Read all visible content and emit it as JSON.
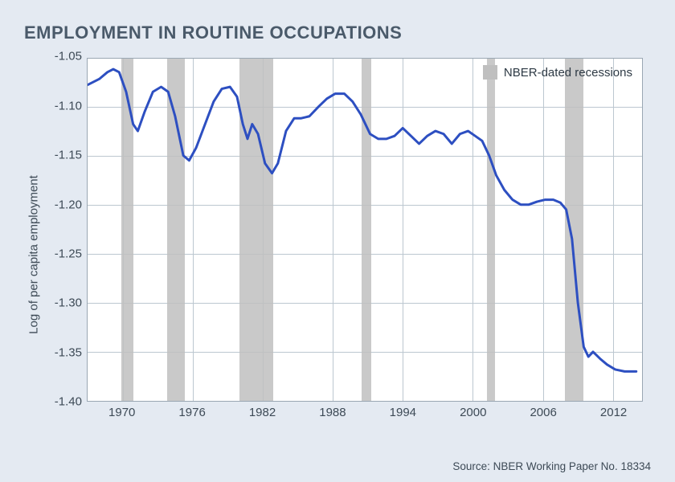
{
  "title": "EMPLOYMENT IN ROUTINE OCCUPATIONS",
  "ylabel": "Log of per capita employment",
  "source": "Source: NBER Working Paper No. 18334",
  "legend_label": "NBER-dated recessions",
  "chart": {
    "type": "line",
    "x_domain": [
      1967,
      2014.5
    ],
    "y_domain": [
      -1.4,
      -1.05125
    ],
    "xticks": [
      1970,
      1976,
      1982,
      1988,
      1994,
      2000,
      2006,
      2012
    ],
    "yticks": [
      -1.05,
      -1.1,
      -1.15,
      -1.2,
      -1.25,
      -1.3,
      -1.35,
      -1.4
    ],
    "background_color": "#ffffff",
    "page_background": "#e4eaf2",
    "grid_color": "#bcc7d0",
    "frame_color": "#9aa7b3",
    "line_color": "#2d4fc1",
    "line_width": 3.0,
    "recession_color": "#bfbfbf",
    "recessions": [
      [
        1969.9,
        1970.9
      ],
      [
        1973.8,
        1975.3
      ],
      [
        1980.0,
        1982.9
      ],
      [
        1990.5,
        1991.3
      ],
      [
        2001.2,
        2001.9
      ],
      [
        2007.9,
        2009.5
      ]
    ],
    "series": [
      {
        "x": 1967.0,
        "y": -1.078
      },
      {
        "x": 1968.0,
        "y": -1.072
      },
      {
        "x": 1968.7,
        "y": -1.065
      },
      {
        "x": 1969.2,
        "y": -1.062
      },
      {
        "x": 1969.7,
        "y": -1.065
      },
      {
        "x": 1970.3,
        "y": -1.085
      },
      {
        "x": 1970.9,
        "y": -1.118
      },
      {
        "x": 1971.3,
        "y": -1.125
      },
      {
        "x": 1971.9,
        "y": -1.105
      },
      {
        "x": 1972.6,
        "y": -1.085
      },
      {
        "x": 1973.3,
        "y": -1.08
      },
      {
        "x": 1973.9,
        "y": -1.085
      },
      {
        "x": 1974.5,
        "y": -1.11
      },
      {
        "x": 1975.2,
        "y": -1.15
      },
      {
        "x": 1975.7,
        "y": -1.155
      },
      {
        "x": 1976.3,
        "y": -1.142
      },
      {
        "x": 1977.0,
        "y": -1.12
      },
      {
        "x": 1977.8,
        "y": -1.095
      },
      {
        "x": 1978.5,
        "y": -1.082
      },
      {
        "x": 1979.2,
        "y": -1.08
      },
      {
        "x": 1979.8,
        "y": -1.09
      },
      {
        "x": 1980.3,
        "y": -1.118
      },
      {
        "x": 1980.7,
        "y": -1.133
      },
      {
        "x": 1981.1,
        "y": -1.118
      },
      {
        "x": 1981.6,
        "y": -1.128
      },
      {
        "x": 1982.2,
        "y": -1.158
      },
      {
        "x": 1982.8,
        "y": -1.168
      },
      {
        "x": 1983.3,
        "y": -1.158
      },
      {
        "x": 1984.0,
        "y": -1.125
      },
      {
        "x": 1984.7,
        "y": -1.112
      },
      {
        "x": 1985.3,
        "y": -1.112
      },
      {
        "x": 1986.0,
        "y": -1.11
      },
      {
        "x": 1986.8,
        "y": -1.1
      },
      {
        "x": 1987.5,
        "y": -1.092
      },
      {
        "x": 1988.2,
        "y": -1.087
      },
      {
        "x": 1989.0,
        "y": -1.087
      },
      {
        "x": 1989.7,
        "y": -1.095
      },
      {
        "x": 1990.4,
        "y": -1.108
      },
      {
        "x": 1991.2,
        "y": -1.128
      },
      {
        "x": 1991.9,
        "y": -1.133
      },
      {
        "x": 1992.6,
        "y": -1.133
      },
      {
        "x": 1993.3,
        "y": -1.13
      },
      {
        "x": 1994.0,
        "y": -1.122
      },
      {
        "x": 1994.7,
        "y": -1.13
      },
      {
        "x": 1995.4,
        "y": -1.138
      },
      {
        "x": 1996.1,
        "y": -1.13
      },
      {
        "x": 1996.8,
        "y": -1.125
      },
      {
        "x": 1997.5,
        "y": -1.128
      },
      {
        "x": 1998.2,
        "y": -1.138
      },
      {
        "x": 1998.9,
        "y": -1.128
      },
      {
        "x": 1999.6,
        "y": -1.125
      },
      {
        "x": 2000.2,
        "y": -1.13
      },
      {
        "x": 2000.8,
        "y": -1.135
      },
      {
        "x": 2001.4,
        "y": -1.15
      },
      {
        "x": 2002.0,
        "y": -1.17
      },
      {
        "x": 2002.7,
        "y": -1.185
      },
      {
        "x": 2003.4,
        "y": -1.195
      },
      {
        "x": 2004.1,
        "y": -1.2
      },
      {
        "x": 2004.8,
        "y": -1.2
      },
      {
        "x": 2005.5,
        "y": -1.197
      },
      {
        "x": 2006.2,
        "y": -1.195
      },
      {
        "x": 2006.9,
        "y": -1.195
      },
      {
        "x": 2007.5,
        "y": -1.198
      },
      {
        "x": 2008.0,
        "y": -1.205
      },
      {
        "x": 2008.5,
        "y": -1.235
      },
      {
        "x": 2009.0,
        "y": -1.3
      },
      {
        "x": 2009.5,
        "y": -1.345
      },
      {
        "x": 2009.9,
        "y": -1.355
      },
      {
        "x": 2010.3,
        "y": -1.35
      },
      {
        "x": 2010.9,
        "y": -1.357
      },
      {
        "x": 2011.5,
        "y": -1.363
      },
      {
        "x": 2012.2,
        "y": -1.368
      },
      {
        "x": 2013.0,
        "y": -1.37
      },
      {
        "x": 2013.7,
        "y": -1.37
      },
      {
        "x": 2014.0,
        "y": -1.37
      }
    ]
  }
}
